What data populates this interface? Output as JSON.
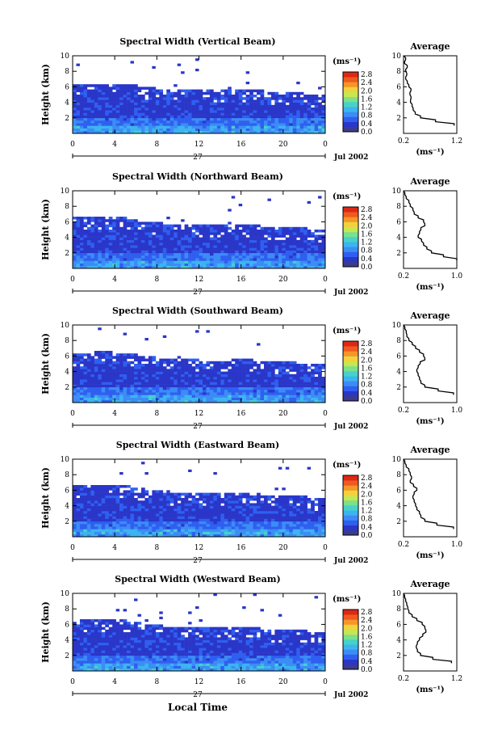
{
  "shared": {
    "xlabel": "Local Time",
    "date_day": "27",
    "date_text": "Jul 2002",
    "ylabel": "Height (km)",
    "unit_label": "(ms⁻¹)",
    "avg_title": "Average",
    "avg_xlabel": "(ms⁻¹)",
    "y_ticks": [
      "2",
      "4",
      "6",
      "8",
      "10"
    ],
    "x_ticks": [
      "0",
      "4",
      "8",
      "12",
      "16",
      "20",
      "0"
    ],
    "colorbar_ticks": [
      "0.0",
      "0.4",
      "0.8",
      "1.2",
      "1.6",
      "2.0",
      "2.4",
      "2.8"
    ],
    "colorscale": [
      "#3c3c8c",
      "#2a36c8",
      "#2f5ff0",
      "#3c8cf5",
      "#3cb4f0",
      "#46d2c8",
      "#7ce08c",
      "#c8e650",
      "#f0d23c",
      "#f59628",
      "#f05a1e",
      "#dc2814"
    ]
  },
  "chart_data": [
    {
      "type": "heatmap",
      "title": "Spectral Width (Vertical Beam)",
      "xlim": [
        0,
        24
      ],
      "ylim": [
        0,
        10
      ],
      "clim": [
        0.0,
        2.8
      ],
      "echo_top_km": [
        6.5,
        6.4,
        6.3,
        6.4,
        6.5,
        6.3,
        6.2,
        6.0,
        5.8,
        5.8,
        5.7,
        5.6,
        5.6,
        5.5,
        5.5,
        5.5,
        5.6,
        5.6,
        5.5,
        5.4,
        5.4,
        5.3,
        5.2,
        5.0,
        5.2
      ],
      "average_panel": {
        "xlim": [
          0.2,
          1.2
        ],
        "xticks": [
          "0.2",
          "1.2"
        ],
        "height_km": [
          1,
          1.5,
          2,
          2.5,
          3,
          3.5,
          4,
          4.5,
          5,
          5.5,
          6,
          6.5,
          7,
          7.5,
          8,
          8.5,
          9,
          9.5,
          10
        ],
        "value": [
          1.15,
          0.8,
          0.52,
          0.42,
          0.38,
          0.36,
          0.33,
          0.34,
          0.32,
          0.34,
          0.3,
          0.27,
          0.24,
          0.26,
          0.24,
          0.27,
          0.22,
          0.24,
          0.2
        ]
      }
    },
    {
      "type": "heatmap",
      "title": "Spectral Width (Northward Beam)",
      "xlim": [
        0,
        24
      ],
      "ylim": [
        0,
        10
      ],
      "clim": [
        0.0,
        2.8
      ],
      "echo_top_km": [
        6.6,
        6.5,
        6.6,
        6.7,
        6.6,
        6.5,
        6.3,
        6.0,
        5.9,
        5.8,
        5.7,
        5.6,
        5.6,
        5.5,
        5.5,
        5.6,
        5.7,
        5.6,
        5.5,
        5.4,
        5.4,
        5.3,
        5.2,
        5.1,
        5.0
      ],
      "average_panel": {
        "xlim": [
          0.2,
          1.0
        ],
        "xticks": [
          "0.2",
          "1.0"
        ],
        "height_km": [
          1,
          1.5,
          2,
          2.5,
          3,
          3.5,
          4,
          4.5,
          5,
          5.5,
          6,
          6.5,
          7,
          7.5,
          8,
          8.5,
          9,
          9.5,
          10
        ],
        "value": [
          1.0,
          0.8,
          0.62,
          0.55,
          0.5,
          0.47,
          0.42,
          0.44,
          0.46,
          0.52,
          0.5,
          0.42,
          0.36,
          0.34,
          0.3,
          0.28,
          0.24,
          0.22,
          0.2
        ]
      }
    },
    {
      "type": "heatmap",
      "title": "Spectral Width (Southward Beam)",
      "xlim": [
        0,
        24
      ],
      "ylim": [
        0,
        10
      ],
      "clim": [
        0.0,
        2.8
      ],
      "echo_top_km": [
        6.4,
        6.3,
        6.5,
        6.6,
        6.5,
        6.4,
        6.2,
        6.0,
        5.8,
        5.7,
        5.6,
        5.5,
        5.5,
        5.4,
        5.4,
        5.5,
        5.6,
        5.5,
        5.4,
        5.3,
        5.3,
        5.2,
        5.1,
        5.0,
        5.0
      ],
      "average_panel": {
        "xlim": [
          0.2,
          1.0
        ],
        "xticks": [
          "0.2",
          "1.0"
        ],
        "height_km": [
          1,
          1.5,
          2,
          2.5,
          3,
          3.5,
          4,
          4.5,
          5,
          5.5,
          6,
          6.5,
          7,
          7.5,
          8,
          8.5,
          9,
          9.5,
          10
        ],
        "value": [
          0.95,
          0.72,
          0.52,
          0.46,
          0.44,
          0.42,
          0.4,
          0.42,
          0.45,
          0.52,
          0.5,
          0.44,
          0.38,
          0.33,
          0.28,
          0.25,
          0.24,
          0.22,
          0.2
        ]
      }
    },
    {
      "type": "heatmap",
      "title": "Spectral Width (Eastward Beam)",
      "xlim": [
        0,
        24
      ],
      "ylim": [
        0,
        10
      ],
      "clim": [
        0.0,
        2.8
      ],
      "echo_top_km": [
        6.7,
        6.6,
        6.7,
        6.8,
        6.7,
        6.6,
        6.4,
        6.1,
        5.9,
        5.8,
        5.7,
        5.6,
        5.6,
        5.5,
        5.5,
        5.6,
        5.7,
        5.6,
        5.5,
        5.4,
        5.4,
        5.3,
        5.2,
        5.1,
        5.0
      ],
      "average_panel": {
        "xlim": [
          0.2,
          1.0
        ],
        "xticks": [
          "0.2",
          "1.0"
        ],
        "height_km": [
          1,
          1.5,
          2,
          2.5,
          3,
          3.5,
          4,
          4.5,
          5,
          5.5,
          6,
          6.5,
          7,
          7.5,
          8,
          8.5,
          9,
          9.5,
          10
        ],
        "value": [
          0.95,
          0.7,
          0.52,
          0.46,
          0.44,
          0.4,
          0.38,
          0.36,
          0.34,
          0.36,
          0.4,
          0.35,
          0.3,
          0.32,
          0.3,
          0.28,
          0.24,
          0.22,
          0.2
        ]
      }
    },
    {
      "type": "heatmap",
      "title": "Spectral Width (Westward Beam)",
      "xlim": [
        0,
        24
      ],
      "ylim": [
        0,
        10
      ],
      "clim": [
        0.0,
        2.8
      ],
      "echo_top_km": [
        6.6,
        6.5,
        6.6,
        6.7,
        6.6,
        6.5,
        6.3,
        6.1,
        5.9,
        5.8,
        5.7,
        5.6,
        5.6,
        5.5,
        5.5,
        5.6,
        5.7,
        5.6,
        5.5,
        5.4,
        5.4,
        5.3,
        5.2,
        5.1,
        5.0
      ],
      "average_panel": {
        "xlim": [
          0.2,
          1.2
        ],
        "xticks": [
          "0.2",
          "1.2"
        ],
        "height_km": [
          1,
          1.5,
          2,
          2.5,
          3,
          3.5,
          4,
          4.5,
          5,
          5.5,
          6,
          6.5,
          7,
          7.5,
          8,
          8.5,
          9,
          9.5,
          10
        ],
        "value": [
          1.1,
          0.75,
          0.52,
          0.46,
          0.44,
          0.46,
          0.5,
          0.56,
          0.62,
          0.6,
          0.55,
          0.45,
          0.36,
          0.3,
          0.28,
          0.26,
          0.24,
          0.22,
          0.2
        ]
      }
    }
  ]
}
